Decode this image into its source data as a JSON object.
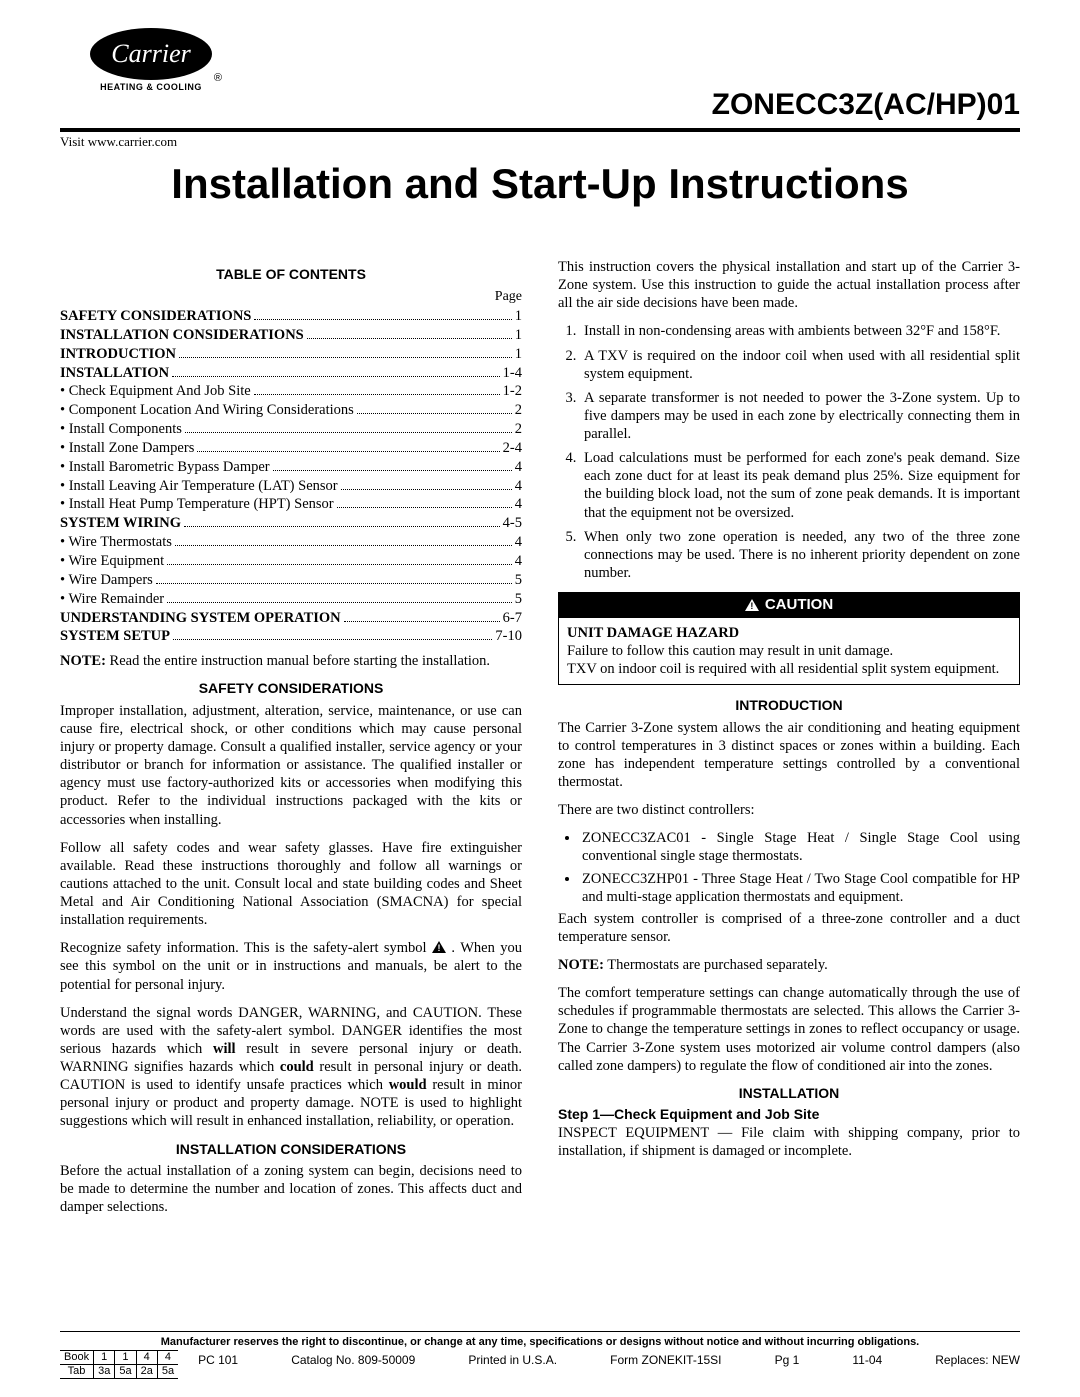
{
  "header": {
    "brand": "Carrier",
    "brand_sub": "HEATING & COOLING",
    "model": "ZONECC3Z(AC/HP)01",
    "visit": "Visit www.carrier.com"
  },
  "title": "Installation and Start-Up Instructions",
  "toc": {
    "heading": "TABLE OF CONTENTS",
    "page_label": "Page",
    "items": [
      {
        "label": "SAFETY CONSIDERATIONS",
        "page": "1",
        "bold": true
      },
      {
        "label": "INSTALLATION CONSIDERATIONS",
        "page": "1",
        "bold": true
      },
      {
        "label": "INTRODUCTION",
        "page": "1",
        "bold": true
      },
      {
        "label": "INSTALLATION",
        "page": "1-4",
        "bold": true
      },
      {
        "label": "• Check Equipment And Job Site",
        "page": "1-2",
        "bold": false
      },
      {
        "label": "• Component Location And Wiring Considerations",
        "page": "2",
        "bold": false
      },
      {
        "label": "• Install Components",
        "page": "2",
        "bold": false
      },
      {
        "label": "• Install Zone Dampers",
        "page": "2-4",
        "bold": false
      },
      {
        "label": "• Install Barometric Bypass Damper",
        "page": "4",
        "bold": false
      },
      {
        "label": "• Install Leaving Air Temperature (LAT) Sensor",
        "page": "4",
        "bold": false
      },
      {
        "label": "• Install Heat Pump Temperature (HPT) Sensor",
        "page": "4",
        "bold": false
      },
      {
        "label": "SYSTEM WIRING",
        "page": "4-5",
        "bold": true
      },
      {
        "label": "• Wire Thermostats",
        "page": "4",
        "bold": false
      },
      {
        "label": "• Wire Equipment",
        "page": "4",
        "bold": false
      },
      {
        "label": "• Wire Dampers",
        "page": "5",
        "bold": false
      },
      {
        "label": "• Wire Remainder",
        "page": "5",
        "bold": false
      },
      {
        "label": "UNDERSTANDING SYSTEM OPERATION",
        "page": "6-7",
        "bold": true
      },
      {
        "label": "SYSTEM SETUP",
        "page": "7-10",
        "bold": true
      }
    ],
    "note_label": "NOTE:",
    "note_text": " Read the entire instruction manual before starting the installation."
  },
  "safety": {
    "heading": "SAFETY CONSIDERATIONS",
    "p1": "Improper installation, adjustment, alteration, service, maintenance, or use can cause fire, electrical shock, or other conditions which may cause personal injury or property damage. Consult a qualified installer, service agency or your distributor or branch for information or assistance. The qualified installer or agency must use factory-authorized kits or accessories when modifying this product. Refer to the individual instructions packaged with the kits or accessories when installing.",
    "p2": "Follow all safety codes and wear safety glasses. Have fire extinguisher available. Read these instructions thoroughly and follow all warnings or cautions attached to the unit. Consult local and state building codes and Sheet Metal and Air Conditioning National Association (SMACNA) for special installation requirements.",
    "p3a": "Recognize safety information. This is the safety-alert symbol ",
    "p3b": " . When you see this symbol on the unit or in instructions and manuals, be alert to the potential for personal injury.",
    "p4": "Understand the signal words DANGER, WARNING, and CAUTION. These words are used with the safety-alert symbol. DANGER identifies the most serious hazards which will result in severe personal injury or death. WARNING signifies hazards which could result in personal injury or death. CAUTION is used to identify unsafe practices which would result in minor personal injury or product and property damage. NOTE is used to highlight suggestions which will result in enhanced installation, reliability, or operation."
  },
  "install_consid": {
    "heading": "INSTALLATION CONSIDERATIONS",
    "p1": "Before the actual installation of a zoning system can begin, decisions need to be made to determine the number and location of zones. This affects duct and damper selections."
  },
  "right_intro": {
    "p1": "This instruction covers the physical installation and start up of the Carrier 3-Zone system. Use this instruction to guide the actual installation process after all the air side decisions have been made.",
    "list": [
      "Install in non-condensing areas with ambients between 32°F and 158°F.",
      "A TXV is required on the indoor coil when used with all residential split system equipment.",
      "A separate transformer is not needed to power the 3-Zone system. Up to five dampers may be used in each zone by electrically connecting them in parallel.",
      "Load calculations must be performed for each zone's peak demand. Size each zone duct for at least its peak demand plus 25%. Size equipment for the building block load, not the sum of zone peak demands. It is important that the equipment not be oversized.",
      "When only two zone operation is needed, any two of the three zone connections may be used. There is no inherent priority dependent on zone number."
    ]
  },
  "caution": {
    "head": "CAUTION",
    "hazard": "UNIT DAMAGE HAZARD",
    "line1": "Failure to follow this caution may result in unit damage.",
    "line2": "TXV on indoor coil is required with all residential split system equipment."
  },
  "introduction": {
    "heading": "INTRODUCTION",
    "p1": "The Carrier 3-Zone system allows the air conditioning and heating equipment to control temperatures in 3 distinct spaces or zones within a building. Each zone has independent temperature settings controlled by a conventional thermostat.",
    "p2": "There are two distinct controllers:",
    "bullets": [
      "ZONECC3ZAC01 - Single Stage Heat / Single Stage Cool using conventional single stage thermostats.",
      "ZONECC3ZHP01 - Three Stage Heat / Two Stage Cool compatible for HP and multi-stage application thermostats and equipment."
    ],
    "p3": "Each system controller is comprised of a three-zone controller and a duct temperature sensor.",
    "note_label": "NOTE:",
    "note_text": " Thermostats are purchased separately.",
    "p4": "The comfort temperature settings can change automatically through the use of schedules if programmable thermostats are selected. This allows the Carrier 3-Zone to change the temperature settings in zones to reflect occupancy or usage. The Carrier 3-Zone system uses motorized air volume control dampers (also called zone dampers) to regulate the flow of conditioned air into the zones."
  },
  "installation": {
    "heading": "INSTALLATION",
    "step_head": "Step 1—Check Equipment and Job Site",
    "p1": "INSPECT EQUIPMENT — File claim with shipping company, prior to installation, if shipment is damaged or incomplete."
  },
  "footer": {
    "disclaimer": "Manufacturer reserves the right to discontinue, or change at any time, specifications or designs without notice and without incurring obligations.",
    "book_label": "Book",
    "tab_label": "Tab",
    "book": [
      "1",
      "1",
      "4",
      "4"
    ],
    "tab": [
      "3a",
      "5a",
      "2a",
      "5a"
    ],
    "pc": "PC 101",
    "catalog": "Catalog No. 809-50009",
    "printed": "Printed in U.S.A.",
    "form": "Form ZONEKIT-15SI",
    "pg": "Pg 1",
    "date": "11-04",
    "replaces": "Replaces: NEW"
  }
}
